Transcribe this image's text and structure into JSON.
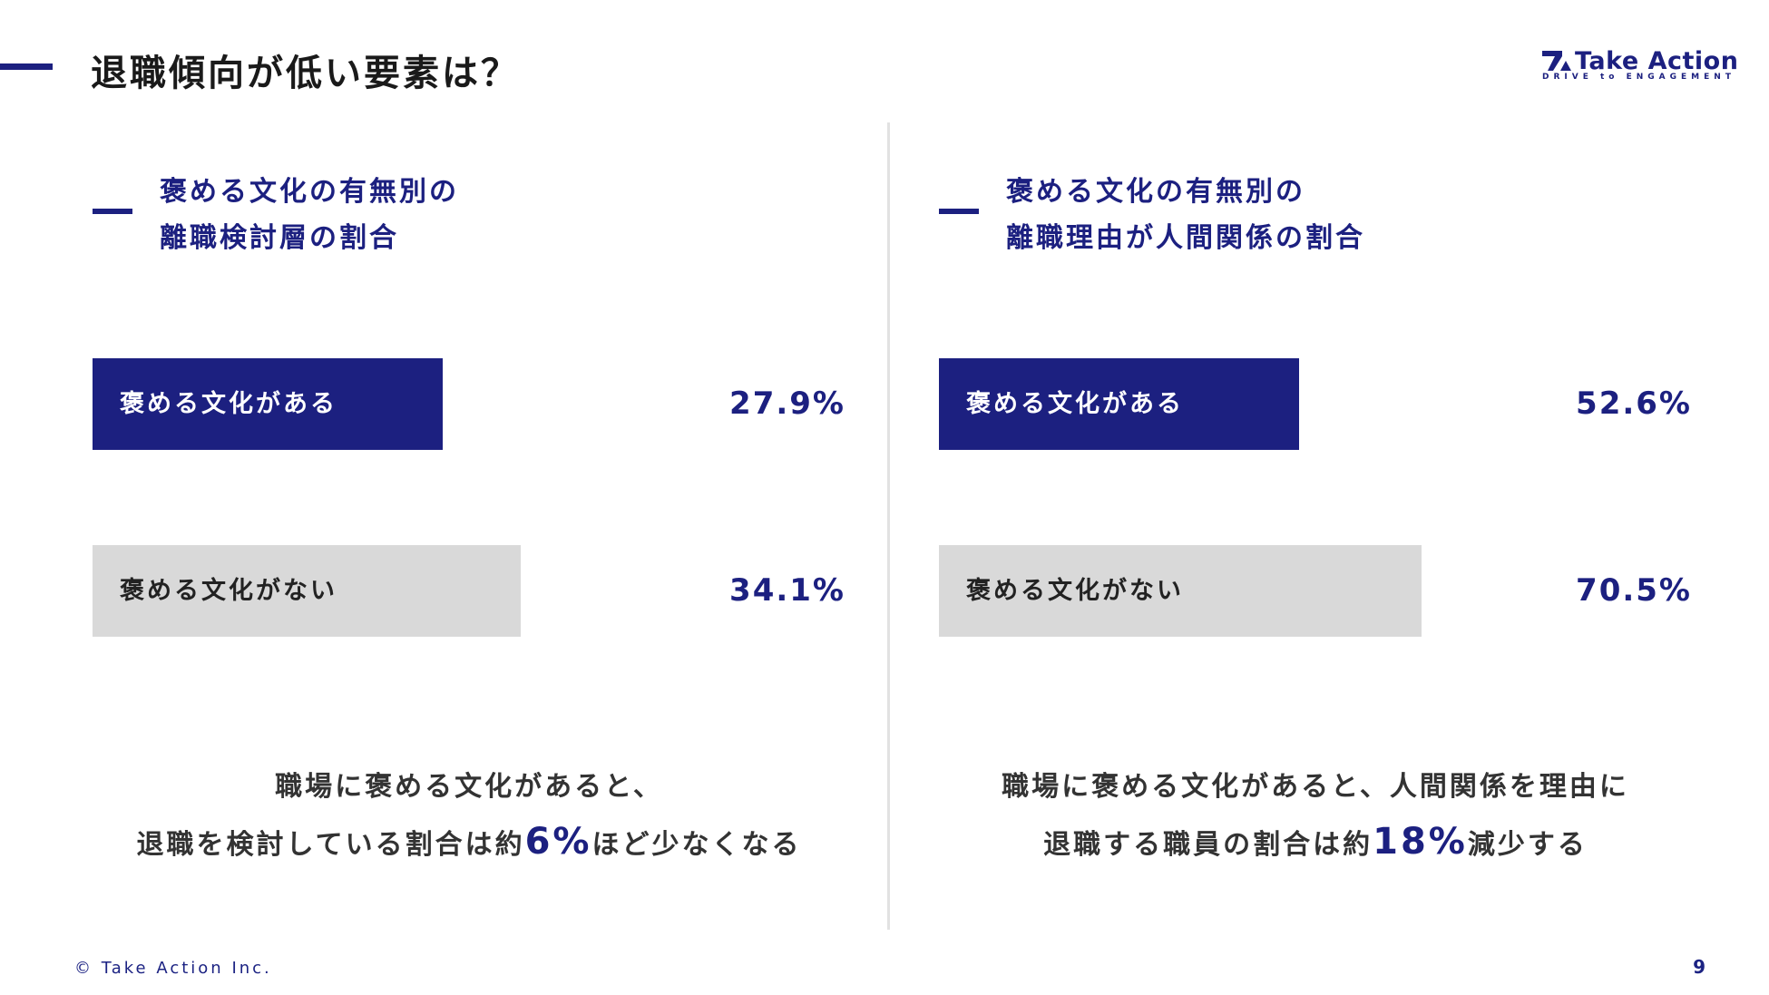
{
  "colors": {
    "accent": "#1c2080",
    "bar_light": "#d9d9d9",
    "text_dark": "#222222"
  },
  "header": {
    "title": "退職傾向が低い要素は？"
  },
  "logo": {
    "name": "Take Action",
    "tagline": "DRIVE to ENGAGEMENT"
  },
  "chart_data": [
    {
      "type": "bar",
      "title": "褒める文化の有無別の\n離職検討層の割合",
      "title_lines": [
        "褒める文化の有無別の",
        "離職検討層の割合"
      ],
      "categories": [
        "褒める文化がある",
        "褒める文化がない"
      ],
      "values": [
        27.9,
        34.1
      ],
      "value_labels": [
        "27.9%",
        "34.1%"
      ],
      "bar_colors": [
        "#1c2080",
        "#d9d9d9"
      ],
      "label_colors": [
        "#ffffff",
        "#222222"
      ],
      "unit": "%",
      "max": 60
    },
    {
      "type": "bar",
      "title": "褒める文化の有無別の\n離職理由が人間関係の割合",
      "title_lines": [
        "褒める文化の有無別の",
        "離職理由が人間関係の割合"
      ],
      "categories": [
        "褒める文化がある",
        "褒める文化がない"
      ],
      "values": [
        52.6,
        70.5
      ],
      "value_labels": [
        "52.6%",
        "70.5%"
      ],
      "bar_colors": [
        "#1c2080",
        "#d9d9d9"
      ],
      "label_colors": [
        "#ffffff",
        "#222222"
      ],
      "unit": "%",
      "max": 110
    }
  ],
  "summaries": [
    {
      "line1": "職場に褒める文化があると、",
      "line2_pre": "退職を検討している割合は約",
      "highlight": "6%",
      "line2_post": "ほど少なくなる"
    },
    {
      "line1": "職場に褒める文化があると、人間関係を理由に",
      "line2_pre": "退職する職員の割合は約",
      "highlight": "18%",
      "line2_post": "減少する"
    }
  ],
  "footer": {
    "copyright": "© Take Action Inc.",
    "page_number": "9"
  }
}
